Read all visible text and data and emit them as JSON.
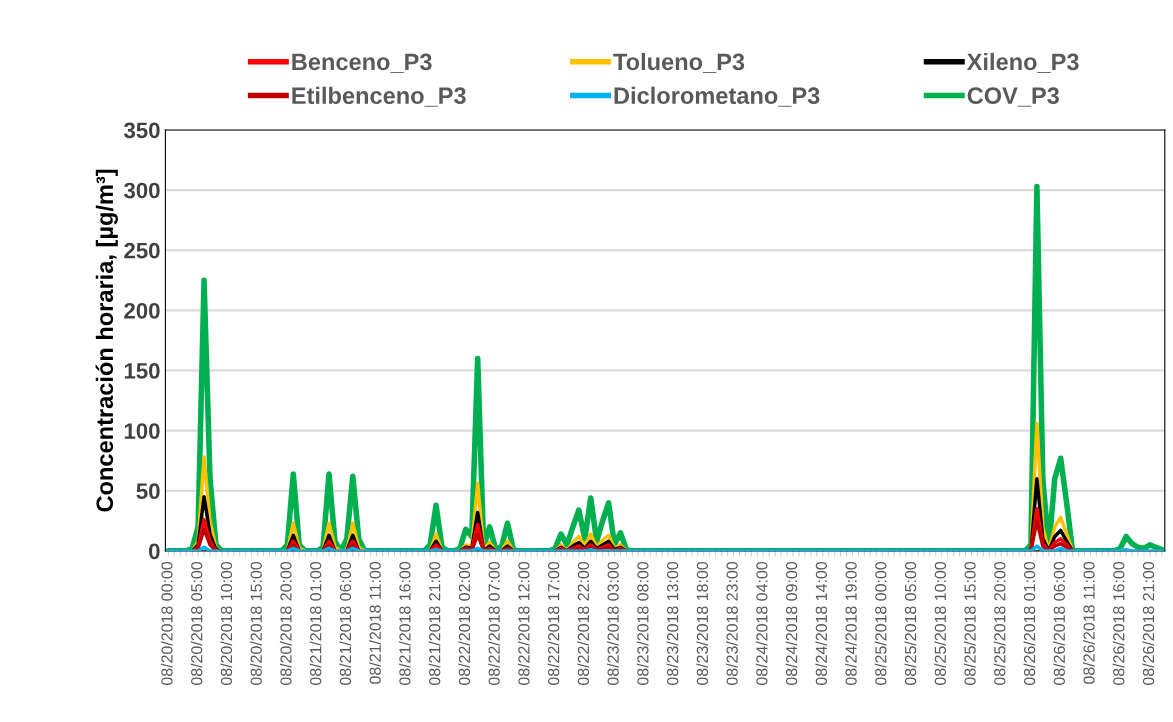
{
  "chart_data": {
    "type": "line",
    "ylabel": "Concentración horaria, [µg/m³]",
    "categories": [
      "08/20/2018 00:00",
      null,
      null,
      null,
      null,
      "08/20/2018 05:00",
      null,
      null,
      null,
      null,
      "08/20/2018 10:00",
      null,
      null,
      null,
      null,
      "08/20/2018 15:00",
      null,
      null,
      null,
      null,
      "08/20/2018 20:00",
      null,
      null,
      null,
      null,
      "08/21/2018 01:00",
      null,
      null,
      null,
      null,
      "08/21/2018 06:00",
      null,
      null,
      null,
      null,
      "08/21/2018 11:00",
      null,
      null,
      null,
      null,
      "08/21/2018 16:00",
      null,
      null,
      null,
      null,
      "08/21/2018 21:00",
      null,
      null,
      null,
      null,
      "08/22/2018 02:00",
      null,
      null,
      null,
      null,
      "08/22/2018 07:00",
      null,
      null,
      null,
      null,
      "08/22/2018 12:00",
      null,
      null,
      null,
      null,
      "08/22/2018 17:00",
      null,
      null,
      null,
      null,
      "08/22/2018 22:00",
      null,
      null,
      null,
      null,
      "08/23/2018 03:00",
      null,
      null,
      null,
      null,
      "08/23/2018 08:00",
      null,
      null,
      null,
      null,
      "08/23/2018 13:00",
      null,
      null,
      null,
      null,
      "08/23/2018 18:00",
      null,
      null,
      null,
      null,
      "08/23/2018 23:00",
      null,
      null,
      null,
      null,
      "08/24/2018 04:00",
      null,
      null,
      null,
      null,
      "08/24/2018 09:00",
      null,
      null,
      null,
      null,
      "08/24/2018 14:00",
      null,
      null,
      null,
      null,
      "08/24/2018 19:00",
      null,
      null,
      null,
      null,
      "08/25/2018 00:00",
      null,
      null,
      null,
      null,
      "08/25/2018 05:00",
      null,
      null,
      null,
      null,
      "08/25/2018 10:00",
      null,
      null,
      null,
      null,
      "08/25/2018 15:00",
      null,
      null,
      null,
      null,
      "08/25/2018 20:00",
      null,
      null,
      null,
      null,
      "08/26/2018 01:00",
      null,
      null,
      null,
      null,
      "08/26/2018 06:00",
      null,
      null,
      null,
      null,
      "08/26/2018 11:00",
      null,
      null,
      null,
      null,
      "08/26/2018 16:00",
      null,
      null,
      null,
      null,
      "08/26/2018 21:00",
      null,
      null
    ],
    "ylim": [
      0,
      350
    ],
    "yticks": [
      0,
      50,
      100,
      150,
      200,
      250,
      300,
      350
    ],
    "grid": "y",
    "legend": "top",
    "marker": "none",
    "line_style": "solid",
    "series": [
      {
        "name": "Benceno_P3",
        "color": "#ff0000",
        "values": [
          null,
          null,
          null,
          null,
          0,
          3,
          26,
          8,
          0,
          null,
          null,
          null,
          null,
          null,
          null,
          null,
          null,
          null,
          null,
          null,
          0,
          8,
          0,
          null,
          null,
          null,
          0,
          8,
          0,
          null,
          0,
          8,
          0,
          null,
          null,
          null,
          null,
          null,
          null,
          null,
          null,
          null,
          null,
          null,
          0,
          5,
          0,
          null,
          null,
          0,
          2,
          1,
          22,
          0,
          2,
          0,
          0,
          2,
          0,
          null,
          null,
          null,
          null,
          null,
          null,
          0,
          2,
          0,
          2,
          4,
          1,
          5,
          1,
          3,
          5,
          0,
          2,
          0,
          null,
          null,
          null,
          null,
          null,
          null,
          null,
          null,
          null,
          null,
          null,
          null,
          null,
          null,
          null,
          null,
          null,
          null,
          null,
          null,
          null,
          null,
          null,
          null,
          null,
          null,
          null,
          null,
          null,
          null,
          null,
          null,
          null,
          null,
          null,
          null,
          null,
          null,
          null,
          null,
          null,
          null,
          null,
          null,
          null,
          null,
          null,
          null,
          null,
          null,
          null,
          null,
          null,
          null,
          null,
          null,
          null,
          null,
          null,
          null,
          null,
          null,
          null,
          null,
          null,
          null,
          null,
          0,
          35,
          6,
          0,
          7,
          10,
          5,
          0,
          null,
          null,
          null,
          null,
          null,
          null,
          null,
          null,
          null,
          null,
          null,
          null,
          null,
          null,
          null
        ]
      },
      {
        "name": "Tolueno_P3",
        "color": "#ffc000",
        "values": [
          null,
          null,
          null,
          null,
          0,
          8,
          78,
          25,
          2,
          0,
          null,
          null,
          null,
          null,
          null,
          null,
          null,
          null,
          null,
          null,
          0,
          23,
          2,
          0,
          null,
          null,
          0,
          23,
          3,
          0,
          0,
          23,
          3,
          0,
          null,
          null,
          null,
          null,
          null,
          null,
          null,
          null,
          null,
          null,
          0,
          14,
          0,
          null,
          null,
          0,
          5,
          4,
          56,
          1,
          7,
          0,
          0,
          8,
          0,
          null,
          null,
          null,
          null,
          null,
          null,
          0,
          5,
          0,
          7,
          12,
          4,
          14,
          3,
          9,
          13,
          2,
          5,
          0,
          null,
          null,
          null,
          null,
          null,
          null,
          null,
          null,
          null,
          null,
          null,
          null,
          null,
          null,
          null,
          null,
          null,
          null,
          null,
          null,
          null,
          null,
          null,
          null,
          null,
          null,
          null,
          null,
          null,
          null,
          null,
          null,
          null,
          null,
          null,
          null,
          null,
          null,
          null,
          null,
          null,
          null,
          null,
          null,
          null,
          null,
          null,
          null,
          null,
          null,
          null,
          null,
          null,
          null,
          null,
          null,
          null,
          null,
          null,
          null,
          null,
          null,
          null,
          null,
          null,
          null,
          null,
          0,
          106,
          20,
          0,
          20,
          28,
          14,
          0,
          null,
          null,
          null,
          null,
          null,
          null,
          null,
          null,
          null,
          null,
          null,
          null,
          null,
          null,
          null
        ]
      },
      {
        "name": "Xileno_P3",
        "color": "#000000",
        "values": [
          null,
          null,
          null,
          null,
          0,
          5,
          45,
          14,
          1,
          0,
          null,
          null,
          null,
          null,
          null,
          null,
          null,
          null,
          null,
          null,
          0,
          13,
          0,
          null,
          null,
          null,
          0,
          13,
          0,
          null,
          0,
          13,
          0,
          null,
          null,
          null,
          null,
          null,
          null,
          null,
          null,
          null,
          null,
          null,
          0,
          8,
          0,
          null,
          null,
          0,
          3,
          2,
          32,
          0,
          4,
          0,
          0,
          4,
          0,
          null,
          null,
          null,
          null,
          null,
          null,
          0,
          3,
          0,
          4,
          7,
          2,
          8,
          2,
          5,
          8,
          1,
          3,
          0,
          null,
          null,
          null,
          null,
          null,
          null,
          null,
          null,
          null,
          null,
          null,
          null,
          null,
          null,
          null,
          null,
          null,
          null,
          null,
          null,
          null,
          null,
          null,
          null,
          null,
          null,
          null,
          null,
          null,
          null,
          null,
          null,
          null,
          null,
          null,
          null,
          null,
          null,
          null,
          null,
          null,
          null,
          null,
          null,
          null,
          null,
          null,
          null,
          null,
          null,
          null,
          null,
          null,
          null,
          null,
          null,
          null,
          null,
          null,
          null,
          null,
          null,
          null,
          null,
          null,
          null,
          null,
          0,
          60,
          10,
          0,
          12,
          17,
          8,
          0,
          null,
          null,
          null,
          null,
          null,
          null,
          null,
          null,
          null,
          null,
          null,
          null,
          null,
          null,
          null
        ]
      },
      {
        "name": "Etilbenceno_P3",
        "color": "#c00000",
        "values": [
          null,
          null,
          null,
          null,
          0,
          2,
          18,
          5,
          0,
          null,
          null,
          null,
          null,
          null,
          null,
          null,
          null,
          null,
          null,
          null,
          0,
          5,
          0,
          null,
          null,
          null,
          0,
          5,
          0,
          null,
          0,
          5,
          0,
          null,
          null,
          null,
          null,
          null,
          null,
          null,
          null,
          null,
          null,
          null,
          null,
          null,
          null,
          null,
          null,
          0,
          1,
          0,
          14,
          0,
          1,
          0,
          0,
          1,
          0,
          null,
          null,
          null,
          null,
          null,
          null,
          0,
          1,
          0,
          1,
          2,
          0,
          3,
          0,
          2,
          3,
          0,
          1,
          0,
          null,
          null,
          null,
          null,
          null,
          null,
          null,
          null,
          null,
          null,
          null,
          null,
          null,
          null,
          null,
          null,
          null,
          null,
          null,
          null,
          null,
          null,
          null,
          null,
          null,
          null,
          null,
          null,
          null,
          null,
          null,
          null,
          null,
          null,
          null,
          null,
          null,
          null,
          null,
          null,
          null,
          null,
          null,
          null,
          null,
          null,
          null,
          null,
          null,
          null,
          null,
          null,
          null,
          null,
          null,
          null,
          null,
          null,
          null,
          null,
          null,
          null,
          null,
          null,
          null,
          null,
          null,
          0,
          25,
          4,
          0,
          4,
          6,
          3,
          0,
          null,
          null,
          null,
          null,
          null,
          null,
          null,
          null,
          null,
          null,
          null,
          null,
          null,
          null,
          null
        ]
      },
      {
        "name": "Diclorometano_P3",
        "color": "#00b0f0",
        "values": [
          0,
          0,
          0,
          0,
          0,
          0,
          3,
          0,
          0,
          0,
          0,
          0,
          0,
          0,
          0,
          0,
          0,
          0,
          0,
          0,
          0,
          2,
          0,
          0,
          0,
          0,
          0,
          2,
          0,
          0,
          0,
          2,
          0,
          0,
          0,
          0,
          0,
          0,
          0,
          0,
          0,
          0,
          0,
          0,
          0,
          1,
          0,
          0,
          0,
          0,
          0,
          0,
          2,
          0,
          0,
          0,
          0,
          0,
          0,
          0,
          0,
          0,
          0,
          0,
          0,
          0,
          0,
          0,
          0,
          0,
          0,
          1,
          0,
          0,
          0,
          0,
          0,
          0,
          0,
          0,
          0,
          0,
          0,
          0,
          0,
          0,
          0,
          0,
          0,
          0,
          0,
          0,
          0,
          0,
          0,
          0,
          0,
          0,
          0,
          0,
          0,
          0,
          0,
          0,
          0,
          0,
          0,
          0,
          0,
          0,
          0,
          0,
          0,
          0,
          0,
          0,
          0,
          0,
          0,
          0,
          0,
          0,
          0,
          0,
          0,
          0,
          0,
          0,
          0,
          0,
          0,
          0,
          0,
          0,
          0,
          0,
          0,
          0,
          0,
          0,
          0,
          0,
          0,
          0,
          0,
          0,
          4,
          0,
          0,
          0,
          2,
          0,
          0,
          0,
          0,
          0,
          0,
          0,
          0,
          0,
          0,
          1,
          0,
          0,
          0,
          0,
          0,
          0
        ]
      },
      {
        "name": "COV_P3",
        "color": "#00b050",
        "values": [
          0,
          0,
          0,
          0,
          2,
          20,
          225,
          60,
          5,
          0,
          0,
          0,
          0,
          0,
          0,
          0,
          0,
          0,
          0,
          0,
          5,
          64,
          5,
          0,
          0,
          0,
          3,
          64,
          8,
          0,
          10,
          62,
          10,
          0,
          0,
          0,
          0,
          0,
          0,
          0,
          0,
          0,
          0,
          0,
          5,
          38,
          3,
          0,
          0,
          2,
          18,
          12,
          160,
          3,
          20,
          2,
          3,
          23,
          1,
          0,
          0,
          0,
          0,
          0,
          0,
          2,
          14,
          5,
          20,
          34,
          10,
          44,
          8,
          25,
          40,
          5,
          15,
          1,
          0,
          0,
          0,
          0,
          0,
          0,
          0,
          0,
          0,
          0,
          0,
          0,
          0,
          0,
          0,
          0,
          0,
          0,
          0,
          0,
          0,
          0,
          0,
          0,
          0,
          0,
          0,
          0,
          0,
          0,
          0,
          0,
          0,
          0,
          0,
          0,
          0,
          0,
          0,
          0,
          0,
          0,
          0,
          0,
          0,
          0,
          0,
          0,
          0,
          0,
          0,
          0,
          0,
          0,
          0,
          0,
          0,
          0,
          0,
          0,
          0,
          0,
          0,
          0,
          0,
          0,
          0,
          5,
          303,
          60,
          2,
          60,
          77,
          40,
          0,
          0,
          0,
          0,
          0,
          0,
          0,
          0,
          2,
          12,
          6,
          3,
          2,
          5,
          3,
          1
        ]
      }
    ]
  }
}
